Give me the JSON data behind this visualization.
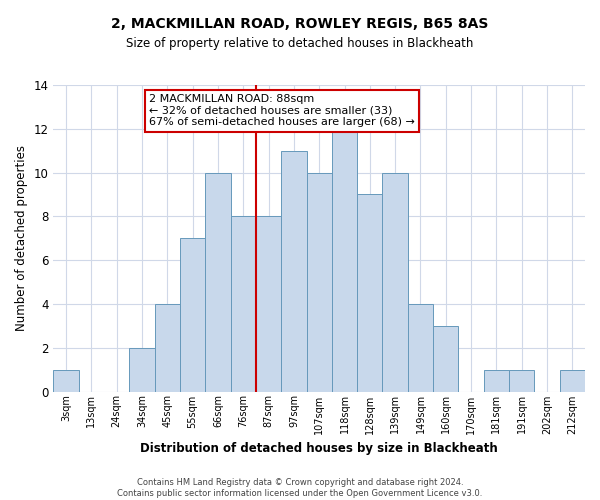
{
  "title": "2, MACKMILLAN ROAD, ROWLEY REGIS, B65 8AS",
  "subtitle": "Size of property relative to detached houses in Blackheath",
  "xlabel": "Distribution of detached houses by size in Blackheath",
  "ylabel": "Number of detached properties",
  "bin_labels": [
    "3sqm",
    "13sqm",
    "24sqm",
    "34sqm",
    "45sqm",
    "55sqm",
    "66sqm",
    "76sqm",
    "87sqm",
    "97sqm",
    "107sqm",
    "118sqm",
    "128sqm",
    "139sqm",
    "149sqm",
    "160sqm",
    "170sqm",
    "181sqm",
    "191sqm",
    "202sqm",
    "212sqm"
  ],
  "bar_heights": [
    1,
    0,
    0,
    2,
    4,
    7,
    10,
    8,
    8,
    11,
    10,
    12,
    9,
    10,
    4,
    3,
    0,
    1,
    1,
    0,
    1
  ],
  "bar_color": "#c8d8eb",
  "bar_edge_color": "#6699bb",
  "highlight_line_color": "#cc0000",
  "annotation_title": "2 MACKMILLAN ROAD: 88sqm",
  "annotation_line1": "← 32% of detached houses are smaller (33)",
  "annotation_line2": "67% of semi-detached houses are larger (68) →",
  "annotation_box_color": "#ffffff",
  "annotation_box_edge": "#cc0000",
  "ylim": [
    0,
    14
  ],
  "yticks": [
    0,
    2,
    4,
    6,
    8,
    10,
    12,
    14
  ],
  "grid_color": "#d0d8e8",
  "footnote": "Contains HM Land Registry data © Crown copyright and database right 2024.\nContains public sector information licensed under the Open Government Licence v3.0."
}
